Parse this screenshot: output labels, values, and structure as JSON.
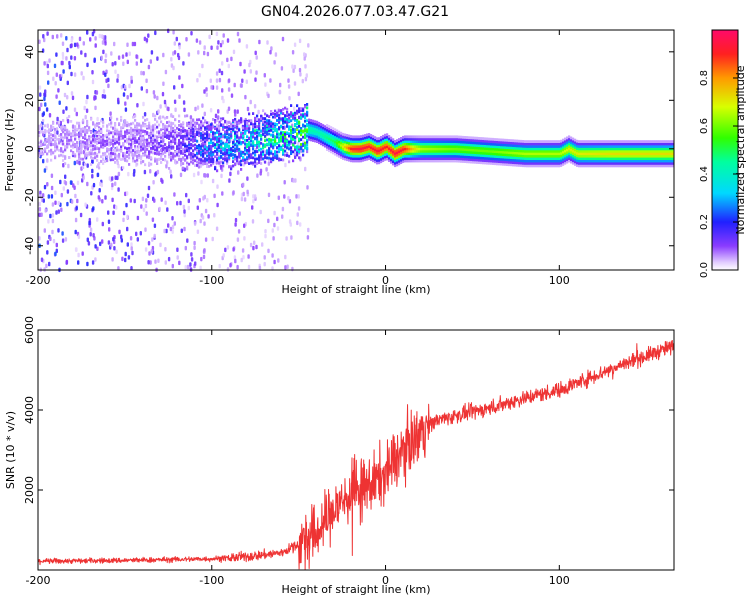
{
  "title": "GN04.2026.077.03.47.G21",
  "chart_data": [
    {
      "type": "heatmap",
      "xlabel": "Height of straight line (km)",
      "ylabel": "Frequency (Hz)",
      "xlim": [
        -200,
        166
      ],
      "ylim": [
        -50,
        49
      ],
      "xticks": [
        -200,
        -100,
        0,
        100
      ],
      "yticks": [
        -40,
        -20,
        0,
        20,
        40
      ],
      "colorbar": {
        "label": "Normalized spectral amplitude",
        "range": [
          0,
          1
        ],
        "ticks": [
          0.0,
          0.2,
          0.4,
          0.6,
          0.8
        ]
      },
      "ridge": {
        "x": [
          -200,
          -120,
          -100,
          -80,
          -60,
          -50,
          -45,
          -40,
          -30,
          -25,
          -20,
          -15,
          -10,
          -5,
          0,
          5,
          10,
          15,
          20,
          40,
          60,
          80,
          100,
          105,
          110,
          130,
          166
        ],
        "y": [
          3,
          3,
          2,
          3,
          6,
          7,
          8,
          7,
          3,
          1,
          0,
          0,
          1,
          -1,
          1,
          -2,
          0,
          0,
          0,
          0,
          -1,
          -2,
          -2,
          0,
          -2,
          -2,
          -2
        ],
        "amplitude": [
          0.05,
          0.1,
          0.25,
          0.3,
          0.38,
          0.42,
          0.45,
          0.42,
          0.5,
          0.7,
          0.92,
          0.95,
          0.92,
          0.95,
          0.9,
          0.95,
          0.92,
          0.75,
          0.65,
          0.6,
          0.6,
          0.65,
          0.65,
          0.7,
          0.7,
          0.72,
          0.72
        ]
      },
      "noise_region": {
        "xlim": [
          -200,
          -45
        ],
        "amplitude": 0.2
      }
    },
    {
      "type": "line",
      "xlabel": "Height of straight line (km)",
      "ylabel": "SNR (10 * v/v)",
      "xlim": [
        -200,
        166
      ],
      "ylim": [
        0,
        6000
      ],
      "xticks": [
        -200,
        -100,
        0,
        100
      ],
      "yticks": [
        2000,
        4000,
        6000
      ],
      "color": "#ee3333",
      "series": [
        {
          "name": "SNR",
          "x": [
            -200,
            -150,
            -100,
            -80,
            -60,
            -50,
            -40,
            -30,
            -20,
            -10,
            0,
            10,
            15,
            20,
            30,
            40,
            60,
            80,
            100,
            120,
            140,
            166
          ],
          "y": [
            220,
            240,
            280,
            330,
            430,
            650,
            900,
            1500,
            1900,
            2100,
            2400,
            3000,
            3200,
            3500,
            3750,
            3850,
            4050,
            4300,
            4500,
            4850,
            5200,
            5600
          ]
        }
      ]
    }
  ]
}
